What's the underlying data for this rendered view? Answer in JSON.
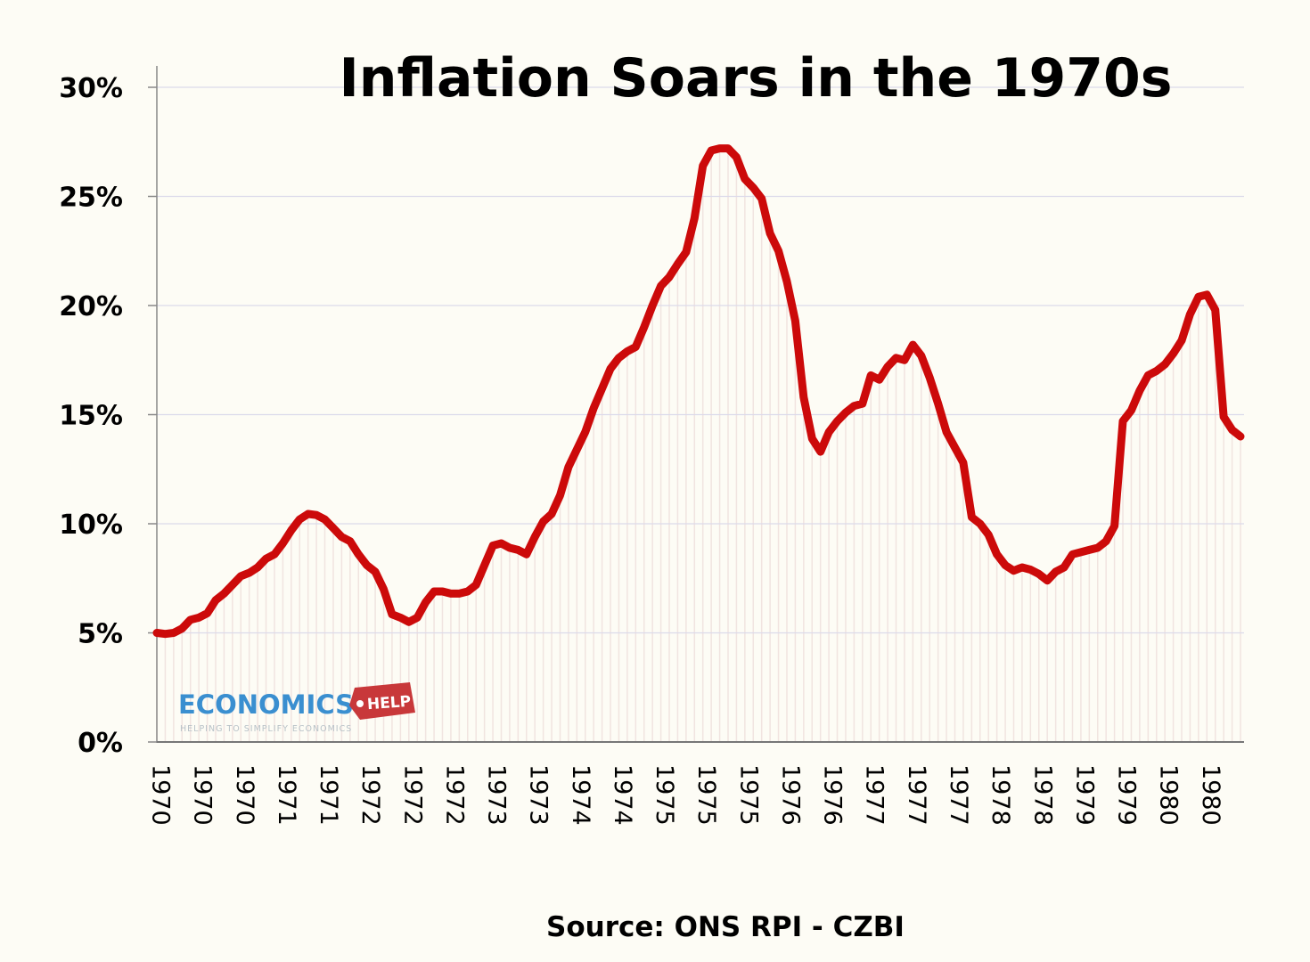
{
  "chart_data": {
    "type": "line",
    "title": "Inflation Soars in the 1970s",
    "source": "Source: ONS RPI - CZBI",
    "xlabel": "",
    "ylabel": "",
    "ylim": [
      0,
      30
    ],
    "y_ticks": [
      0,
      5,
      10,
      15,
      20,
      25,
      30
    ],
    "y_tick_labels": [
      "0%",
      "5%",
      "10%",
      "15%",
      "20%",
      "25%",
      "30%"
    ],
    "x_tick_labels": [
      "1970",
      "1970",
      "1970",
      "1971",
      "1971",
      "1972",
      "1972",
      "1972",
      "1973",
      "1973",
      "1974",
      "1974",
      "1975",
      "1975",
      "1975",
      "1976",
      "1976",
      "1977",
      "1977",
      "1977",
      "1978",
      "1978",
      "1979",
      "1979",
      "1980",
      "1980"
    ],
    "x_tick_every": 5,
    "grid": "horizontal",
    "series": [
      {
        "color": "#cc0a0a",
        "values": [
          5.0,
          4.95,
          5.0,
          5.2,
          5.6,
          5.7,
          5.9,
          6.5,
          6.8,
          7.2,
          7.6,
          7.75,
          8.0,
          8.4,
          8.6,
          9.1,
          9.7,
          10.2,
          10.45,
          10.4,
          10.2,
          9.8,
          9.4,
          9.2,
          8.6,
          8.1,
          7.8,
          7.0,
          5.85,
          5.7,
          5.5,
          5.7,
          6.4,
          6.9,
          6.9,
          6.8,
          6.8,
          6.9,
          7.2,
          8.1,
          9.0,
          9.1,
          8.9,
          8.8,
          8.6,
          9.4,
          10.1,
          10.45,
          11.3,
          12.6,
          13.4,
          14.2,
          15.3,
          16.2,
          17.1,
          17.6,
          17.9,
          18.1,
          19.0,
          20.0,
          20.9,
          21.3,
          21.9,
          22.45,
          24.0,
          26.4,
          27.1,
          27.2,
          27.2,
          26.8,
          25.8,
          25.4,
          24.9,
          23.3,
          22.5,
          21.1,
          19.3,
          15.8,
          13.9,
          13.3,
          14.2,
          14.7,
          15.1,
          15.4,
          15.5,
          16.8,
          16.6,
          17.2,
          17.6,
          17.5,
          18.2,
          17.7,
          16.7,
          15.5,
          14.2,
          13.5,
          12.8,
          10.3,
          10.0,
          9.5,
          8.6,
          8.1,
          7.85,
          8.0,
          7.9,
          7.7,
          7.4,
          7.8,
          8.0,
          8.6,
          8.7,
          8.8,
          8.9,
          9.2,
          9.9,
          14.7,
          15.2,
          16.1,
          16.8,
          17.0,
          17.3,
          17.8,
          18.4,
          19.6,
          20.4,
          20.5,
          19.8,
          14.9,
          14.3,
          14.0
        ]
      }
    ]
  },
  "logo": {
    "main": "ECONOMICS",
    "tag": "HELP",
    "subtitle": "HELPING TO SIMPLIFY ECONOMICS"
  }
}
